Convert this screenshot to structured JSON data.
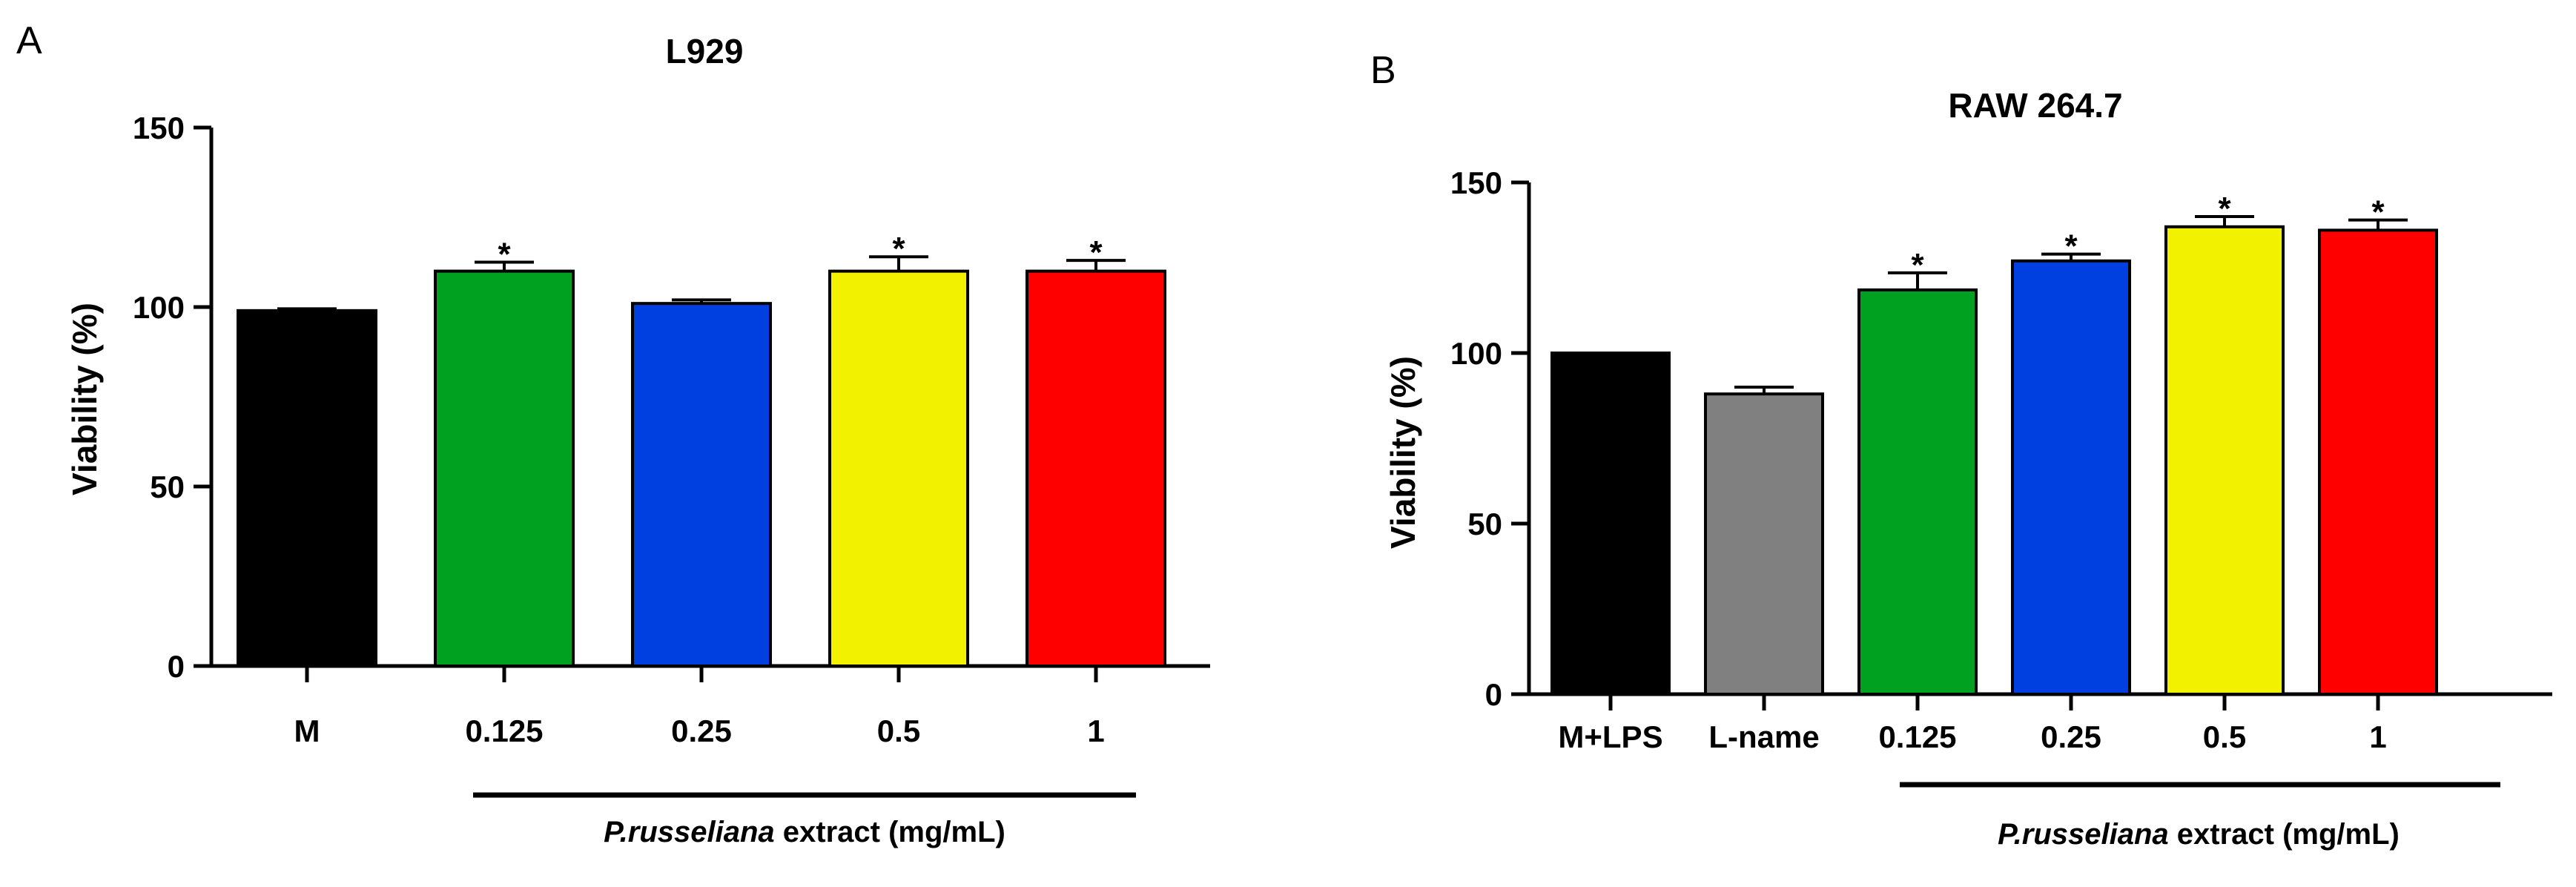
{
  "chart_data": [
    {
      "panel": "A",
      "type": "bar",
      "title": "L929",
      "ylabel": "Viability (%)",
      "ylim": [
        0,
        150
      ],
      "yticks": [
        "0",
        "50",
        "100",
        "150"
      ],
      "categories": [
        "M",
        "0.125",
        "0.25",
        "0.5",
        "1"
      ],
      "values": [
        99,
        110,
        101,
        110,
        110
      ],
      "errors": [
        0.5,
        2.5,
        1,
        4,
        3
      ],
      "colors": [
        "#000000",
        "#00a020",
        "#0040e0",
        "#f2f200",
        "#ff0000"
      ],
      "significance": [
        "",
        "*",
        "",
        "*",
        "*"
      ],
      "group_label_italic": "P.russeliana",
      "group_label_rest": " extract (mg/mL)"
    },
    {
      "panel": "B",
      "type": "bar",
      "title": "RAW 264.7",
      "ylabel": "Viability (%)",
      "ylim": [
        0,
        150
      ],
      "yticks": [
        "0",
        "50",
        "100",
        "150"
      ],
      "categories": [
        "M+LPS",
        "L-name",
        "0.125",
        "0.25",
        "0.5",
        "1"
      ],
      "values": [
        100,
        88,
        118.5,
        127,
        137,
        136
      ],
      "errors": [
        0,
        2,
        5,
        2,
        3,
        3
      ],
      "colors": [
        "#000000",
        "#808080",
        "#00a020",
        "#0040e0",
        "#f2f200",
        "#ff0000"
      ],
      "significance": [
        "",
        "",
        "*",
        "*",
        "*",
        "*"
      ],
      "group_label_italic": "P.russeliana",
      "group_label_rest": " extract (mg/mL)"
    }
  ]
}
